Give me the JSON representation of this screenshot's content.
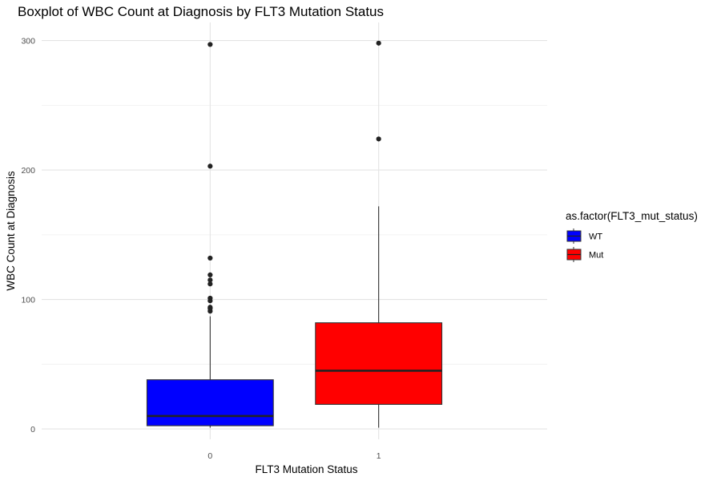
{
  "chart_data": {
    "type": "boxplot",
    "title": "Boxplot of WBC Count at Diagnosis by FLT3 Mutation Status",
    "xlabel": "FLT3 Mutation Status",
    "ylabel": "WBC Count at Diagnosis",
    "categories": [
      "0",
      "1"
    ],
    "y_ticks": [
      0,
      100,
      200,
      300
    ],
    "ylim": [
      -8,
      314
    ],
    "grid": true,
    "legend": {
      "title": "as.factor(FLT3_mut_status)",
      "position": "right",
      "entries": [
        {
          "label": "WT",
          "color": "#0000FF"
        },
        {
          "label": "Mut",
          "color": "#FF0000"
        }
      ]
    },
    "boxes": [
      {
        "category": "0",
        "label": "WT",
        "color": "#0000FF",
        "min": 1,
        "q1": 2.5,
        "median": 10,
        "q3": 38,
        "max": 87,
        "outliers": [
          91,
          93,
          94,
          99,
          101,
          112,
          115,
          119,
          132,
          203,
          297
        ]
      },
      {
        "category": "1",
        "label": "Mut",
        "color": "#FF0000",
        "min": 1,
        "q1": 19,
        "median": 45,
        "q3": 82,
        "max": 172,
        "outliers": [
          224,
          298
        ]
      }
    ]
  }
}
